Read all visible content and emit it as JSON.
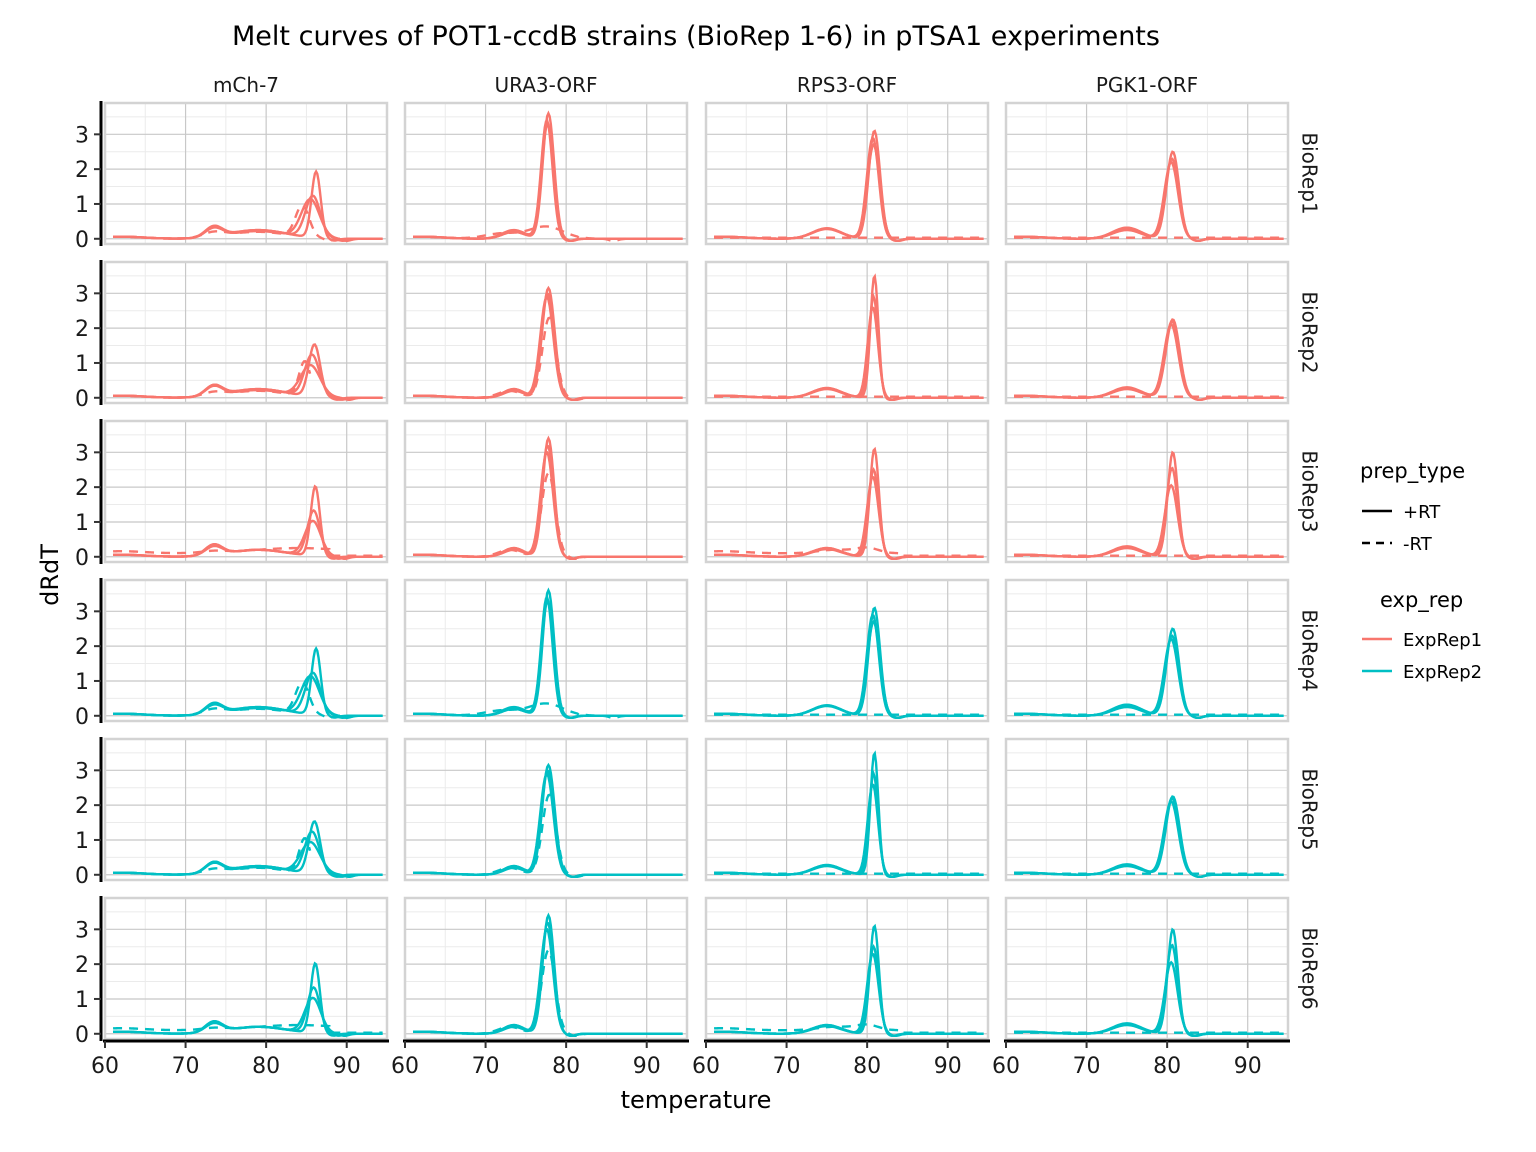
{
  "chart_data": {
    "type": "line",
    "title": "Melt curves of POT1-ccdB strains (BioRep 1-6) in pTSA1 experiments",
    "xlabel": "temperature",
    "ylabel": "dRdT",
    "xlim": [
      60,
      95
    ],
    "ylim": [
      -0.15,
      3.9
    ],
    "x_ticks": [
      "60",
      "70",
      "80",
      "90"
    ],
    "y_ticks": [
      "0",
      "1",
      "2",
      "3"
    ],
    "grid": true,
    "legend_position": "right",
    "columns": [
      "mCh-7",
      "URA3-ORF",
      "RPS3-ORF",
      "PGK1-ORF"
    ],
    "rows": [
      "BioRep1",
      "BioRep2",
      "BioRep3",
      "BioRep4",
      "BioRep5",
      "BioRep6"
    ],
    "row_colour": [
      "ExpRep1",
      "ExpRep1",
      "ExpRep1",
      "ExpRep2",
      "ExpRep2",
      "ExpRep2"
    ],
    "panel_variant": [
      0,
      1,
      2,
      0,
      1,
      2
    ],
    "legends": [
      {
        "title": "prep_type",
        "entries": [
          {
            "label": "+RT",
            "dash": "solid"
          },
          {
            "label": "-RT",
            "dash": "dashed"
          }
        ]
      },
      {
        "title": "exp_rep",
        "entries": [
          {
            "label": "ExpRep1",
            "color": "#F8766D"
          },
          {
            "label": "ExpRep2",
            "color": "#00BFC4"
          }
        ]
      }
    ],
    "colors": {
      "ExpRep1": "#F8766D",
      "ExpRep2": "#00BFC4"
    },
    "approx_curves": {
      "description_units": "peak parameters in data units: Tm (temperature), h (dRdT height), w (width), plus shoulder [Tm, h, w] and start_x for truncated -RT curves",
      "mCh-7": {
        "variants": [
          {
            "plus": [
              {
                "tm": 86.2,
                "h": 1.9,
                "w": 0.8,
                "shoulder": [
                  [
                    73.5,
                    0.3,
                    1.5
                  ],
                  [
                    79,
                    0.25,
                    5
                  ]
                ]
              },
              {
                "tm": 85.8,
                "h": 1.2,
                "w": 1.3,
                "shoulder": [
                  [
                    73.5,
                    0.25,
                    1.5
                  ],
                  [
                    79,
                    0.25,
                    5
                  ]
                ]
              },
              {
                "tm": 85.5,
                "h": 1.1,
                "w": 1.6,
                "shoulder": [
                  [
                    73.5,
                    0.28,
                    1.5
                  ],
                  [
                    79,
                    0.22,
                    5
                  ]
                ]
              }
            ],
            "minus": [
              {
                "tm": 84.5,
                "h": 0.9,
                "w": 1.2,
                "shoulder": [
                  [
                    73.5,
                    0.15,
                    2
                  ],
                  [
                    79,
                    0.2,
                    5
                  ]
                ]
              }
            ]
          },
          {
            "plus": [
              {
                "tm": 86.0,
                "h": 1.5,
                "w": 1.0,
                "shoulder": [
                  [
                    73.5,
                    0.3,
                    1.5
                  ],
                  [
                    79,
                    0.25,
                    5
                  ]
                ]
              },
              {
                "tm": 85.7,
                "h": 1.2,
                "w": 1.3,
                "shoulder": [
                  [
                    73.5,
                    0.3,
                    1.5
                  ],
                  [
                    79,
                    0.25,
                    5
                  ]
                ]
              },
              {
                "tm": 85.5,
                "h": 0.9,
                "w": 1.7,
                "shoulder": [
                  [
                    73.5,
                    0.28,
                    1.5
                  ],
                  [
                    79,
                    0.22,
                    5
                  ]
                ]
              }
            ],
            "minus": [
              {
                "tm": 84.8,
                "h": 1.0,
                "w": 1.0,
                "shoulder": [
                  [
                    73.5,
                    0.12,
                    2
                  ],
                  [
                    79,
                    0.2,
                    5
                  ]
                ],
                "cut": 85.5
              }
            ]
          },
          {
            "plus": [
              {
                "tm": 86.1,
                "h": 2.0,
                "w": 0.8,
                "shoulder": [
                  [
                    73.5,
                    0.3,
                    1.5
                  ],
                  [
                    79,
                    0.2,
                    5
                  ]
                ]
              },
              {
                "tm": 85.9,
                "h": 1.3,
                "w": 1.1,
                "shoulder": [
                  [
                    73.5,
                    0.3,
                    1.5
                  ],
                  [
                    79,
                    0.2,
                    5
                  ]
                ]
              },
              {
                "tm": 85.8,
                "h": 1.0,
                "w": 1.4,
                "shoulder": [
                  [
                    73.5,
                    0.25,
                    1.5
                  ],
                  [
                    79,
                    0.2,
                    5
                  ]
                ]
              }
            ],
            "minus": [
              {
                "tm": 84.0,
                "h": 0.15,
                "w": 8,
                "shoulder": [
                  [
                    73.5,
                    0.05,
                    2
                  ]
                ],
                "flat": 0.1
              }
            ]
          }
        ]
      },
      "URA3-ORF": {
        "variants": [
          {
            "plus": [
              {
                "tm": 77.8,
                "h": 3.6,
                "w": 1.0,
                "shoulder": [
                  [
                    73.5,
                    0.2,
                    2
                  ]
                ]
              },
              {
                "tm": 77.7,
                "h": 3.3,
                "w": 1.05,
                "shoulder": [
                  [
                    73.5,
                    0.2,
                    2
                  ]
                ]
              },
              {
                "tm": 77.6,
                "h": 3.4,
                "w": 1.0,
                "shoulder": [
                  [
                    73.5,
                    0.25,
                    2
                  ]
                ]
              }
            ],
            "minus": [
              {
                "tm": 77.5,
                "h": 0.35,
                "w": 3,
                "shoulder": [
                  [
                    72,
                    0.15,
                    3
                  ]
                ]
              }
            ]
          },
          {
            "plus": [
              {
                "tm": 77.8,
                "h": 3.15,
                "w": 1.1,
                "shoulder": [
                  [
                    73.5,
                    0.25,
                    1.8
                  ]
                ]
              },
              {
                "tm": 77.7,
                "h": 3.0,
                "w": 1.1,
                "shoulder": [
                  [
                    73.5,
                    0.25,
                    1.8
                  ]
                ]
              },
              {
                "tm": 77.6,
                "h": 2.9,
                "w": 1.15,
                "shoulder": [
                  [
                    73.5,
                    0.2,
                    1.8
                  ]
                ]
              }
            ],
            "minus": [
              {
                "tm": 77.9,
                "h": 2.3,
                "w": 1.2,
                "shoulder": [
                  [
                    73,
                    0.2,
                    2
                  ]
                ]
              }
            ]
          },
          {
            "plus": [
              {
                "tm": 77.8,
                "h": 3.4,
                "w": 1.0,
                "shoulder": [
                  [
                    73.5,
                    0.25,
                    1.8
                  ]
                ]
              },
              {
                "tm": 77.7,
                "h": 3.2,
                "w": 1.05,
                "shoulder": [
                  [
                    73.5,
                    0.25,
                    1.8
                  ]
                ]
              },
              {
                "tm": 77.6,
                "h": 3.0,
                "w": 1.1,
                "shoulder": [
                  [
                    73.5,
                    0.2,
                    1.8
                  ]
                ]
              }
            ],
            "minus": [
              {
                "tm": 77.8,
                "h": 2.4,
                "w": 1.2,
                "shoulder": [
                  [
                    73,
                    0.2,
                    2
                  ]
                ]
              }
            ]
          }
        ]
      },
      "RPS3-ORF": {
        "variants": [
          {
            "plus": [
              {
                "tm": 80.9,
                "h": 3.1,
                "w": 1.0,
                "shoulder": [
                  [
                    75,
                    0.3,
                    2.5
                  ]
                ]
              },
              {
                "tm": 80.8,
                "h": 2.7,
                "w": 1.1,
                "shoulder": [
                  [
                    75,
                    0.3,
                    2.5
                  ]
                ]
              },
              {
                "tm": 80.7,
                "h": 2.9,
                "w": 1.05,
                "shoulder": [
                  [
                    75,
                    0.28,
                    2.5
                  ]
                ]
              }
            ],
            "minus": [
              {
                "tm": 80,
                "h": 0.0,
                "w": 3,
                "shoulder": [],
                "flat": 0.03
              }
            ]
          },
          {
            "plus": [
              {
                "tm": 80.9,
                "h": 3.5,
                "w": 0.7,
                "shoulder": [
                  [
                    75,
                    0.28,
                    2.5
                  ]
                ]
              },
              {
                "tm": 80.8,
                "h": 2.9,
                "w": 0.8,
                "shoulder": [
                  [
                    75,
                    0.28,
                    2.5
                  ]
                ]
              },
              {
                "tm": 80.7,
                "h": 2.6,
                "w": 0.9,
                "shoulder": [
                  [
                    75,
                    0.25,
                    2.5
                  ]
                ]
              }
            ],
            "minus": [
              {
                "tm": 80,
                "h": 0.0,
                "w": 3,
                "shoulder": [],
                "flat": 0.03
              }
            ]
          },
          {
            "plus": [
              {
                "tm": 80.9,
                "h": 3.1,
                "w": 0.8,
                "shoulder": [
                  [
                    75,
                    0.25,
                    2.5
                  ]
                ]
              },
              {
                "tm": 80.8,
                "h": 2.5,
                "w": 0.9,
                "shoulder": [
                  [
                    75,
                    0.25,
                    2.5
                  ]
                ]
              },
              {
                "tm": 80.7,
                "h": 2.3,
                "w": 1.0,
                "shoulder": [
                  [
                    75,
                    0.22,
                    2.5
                  ]
                ]
              }
            ],
            "minus": [
              {
                "tm": 80,
                "h": 0.15,
                "w": 2,
                "shoulder": [
                  [
                    76,
                    0.1,
                    3
                  ]
                ],
                "flat": 0.1
              }
            ]
          }
        ]
      },
      "PGK1-ORF": {
        "variants": [
          {
            "plus": [
              {
                "tm": 80.7,
                "h": 2.5,
                "w": 1.1,
                "shoulder": [
                  [
                    75,
                    0.32,
                    2.5
                  ]
                ]
              },
              {
                "tm": 80.6,
                "h": 2.3,
                "w": 1.15,
                "shoulder": [
                  [
                    75,
                    0.28,
                    2.5
                  ]
                ]
              },
              {
                "tm": 80.5,
                "h": 2.2,
                "w": 1.2,
                "shoulder": [
                  [
                    75,
                    0.25,
                    2.5
                  ]
                ]
              }
            ],
            "minus": [
              {
                "tm": 80,
                "h": 0.0,
                "w": 3,
                "shoulder": [],
                "flat": 0.03
              }
            ]
          },
          {
            "plus": [
              {
                "tm": 80.7,
                "h": 2.25,
                "w": 1.2,
                "shoulder": [
                  [
                    75,
                    0.3,
                    2.5
                  ]
                ]
              },
              {
                "tm": 80.6,
                "h": 2.2,
                "w": 1.2,
                "shoulder": [
                  [
                    75,
                    0.28,
                    2.5
                  ]
                ]
              },
              {
                "tm": 80.5,
                "h": 2.1,
                "w": 1.25,
                "shoulder": [
                  [
                    75,
                    0.25,
                    2.5
                  ]
                ]
              }
            ],
            "minus": [
              {
                "tm": 80,
                "h": 0.0,
                "w": 3,
                "shoulder": [],
                "flat": 0.03
              }
            ]
          },
          {
            "plus": [
              {
                "tm": 80.7,
                "h": 3.0,
                "w": 0.9,
                "shoulder": [
                  [
                    75,
                    0.3,
                    2.5
                  ]
                ]
              },
              {
                "tm": 80.6,
                "h": 2.55,
                "w": 1.0,
                "shoulder": [
                  [
                    75,
                    0.28,
                    2.5
                  ]
                ]
              },
              {
                "tm": 80.5,
                "h": 2.05,
                "w": 1.1,
                "shoulder": [
                  [
                    75,
                    0.25,
                    2.5
                  ]
                ]
              }
            ],
            "minus": [
              {
                "tm": 80,
                "h": 0.0,
                "w": 3,
                "shoulder": [],
                "flat": 0.03
              }
            ]
          }
        ]
      }
    }
  }
}
